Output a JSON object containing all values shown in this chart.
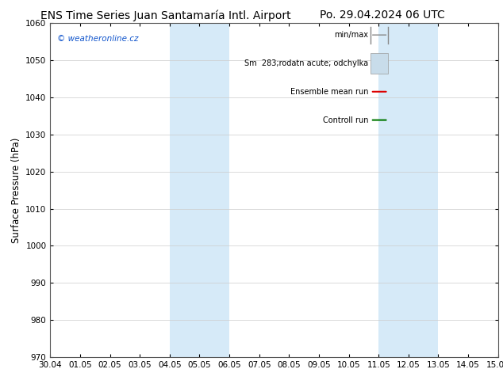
{
  "title_left": "ENS Time Series Juan Santamaría Intl. Airport",
  "title_right": "Po. 29.04.2024 06 UTC",
  "ylabel": "Surface Pressure (hPa)",
  "ylim": [
    970,
    1060
  ],
  "yticks": [
    970,
    980,
    990,
    1000,
    1010,
    1020,
    1030,
    1040,
    1050,
    1060
  ],
  "xlim_start": "2024-04-30",
  "xlim_end": "2024-05-15",
  "xtick_labels": [
    "30.04",
    "01.05",
    "02.05",
    "03.05",
    "04.05",
    "05.05",
    "06.05",
    "07.05",
    "08.05",
    "09.05",
    "10.05",
    "11.05",
    "12.05",
    "13.05",
    "14.05",
    "15.05"
  ],
  "shade_bands": [
    {
      "start": "2024-05-04",
      "end": "2024-05-06"
    },
    {
      "start": "2024-05-11",
      "end": "2024-05-13"
    }
  ],
  "shade_color": "#d6eaf8",
  "watermark_text": "© weatheronline.cz",
  "watermark_color": "#1155cc",
  "legend_labels": [
    "min/max",
    "Sm  283;rodatn acute; odchylka",
    "Ensemble mean run",
    "Controll run"
  ],
  "legend_line_colors": [
    "#888888",
    "#c8dcea",
    "#dd0000",
    "#007700"
  ],
  "title_fontsize": 10,
  "legend_fontsize": 7,
  "tick_fontsize": 7.5,
  "ylabel_fontsize": 8.5,
  "background_color": "#ffffff",
  "plot_bg_color": "#ffffff"
}
